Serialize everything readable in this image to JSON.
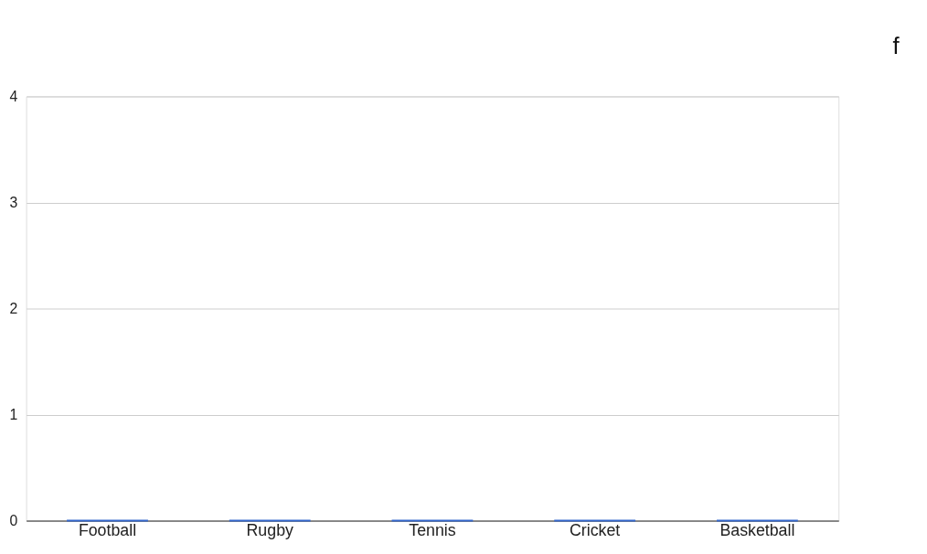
{
  "chart_data": {
    "type": "bar",
    "categories": [
      "Football",
      "Rugby",
      "Tennis",
      "Cricket",
      "Basketball"
    ],
    "values": [
      0,
      0,
      0,
      0,
      0
    ],
    "color": "#3366cc",
    "ylim": [
      0,
      4
    ],
    "yticks": [
      0,
      1,
      2,
      3,
      4
    ],
    "grid": "y",
    "annotations": [
      "f"
    ]
  }
}
